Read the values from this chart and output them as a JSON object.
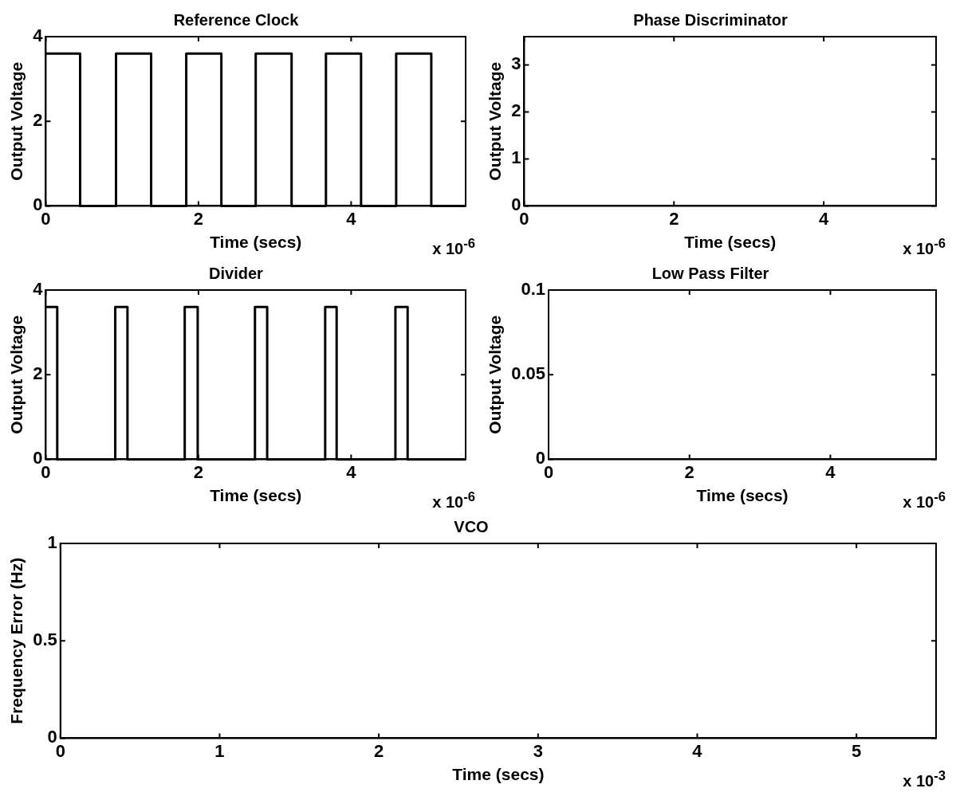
{
  "chart_data": [
    {
      "type": "step",
      "title": "Reference Clock",
      "xlabel": "Time (secs)",
      "ylabel": "Output Voltage",
      "annotations": [
        "x 10$^{-6}$"
      ],
      "color": "#000000",
      "grid": false,
      "legend": false,
      "marker": "none",
      "x": [
        0,
        0.45,
        0.92,
        1.38,
        1.84,
        2.3,
        2.75,
        3.22,
        3.67,
        4.13,
        4.59,
        5.05,
        5.5
      ],
      "values": [
        3.6,
        0,
        3.6,
        0,
        3.6,
        0,
        3.6,
        0,
        3.6,
        0,
        3.6,
        0,
        0
      ],
      "xlim": [
        0,
        5.5
      ],
      "xticks": [
        0,
        2,
        4
      ],
      "ylim": [
        0,
        4
      ],
      "yticks": [
        0,
        2,
        4
      ]
    },
    {
      "type": "line",
      "title": "Phase Discriminator",
      "xlabel": "Time (secs)",
      "ylabel": "Output Voltage",
      "annotations": [
        "x 10$^{-6}$"
      ],
      "color": "#000000",
      "grid": false,
      "legend": false,
      "marker": "none",
      "xlim": [
        0,
        5.5
      ],
      "xticks": [
        0,
        2,
        4
      ],
      "ylim": [
        0,
        3.6
      ],
      "yticks": [
        0,
        1,
        2,
        3
      ]
    },
    {
      "type": "step",
      "title": "Divider",
      "xlabel": "Time (secs)",
      "ylabel": "Output Voltage",
      "annotations": [
        "x 10$^{-6}$"
      ],
      "color": "#000000",
      "grid": false,
      "legend": false,
      "marker": "none",
      "x": [
        0,
        0.15,
        0.91,
        1.07,
        1.82,
        1.99,
        2.74,
        2.9,
        3.66,
        3.81,
        4.58,
        4.74,
        5.5
      ],
      "values": [
        3.6,
        0,
        3.6,
        0,
        3.6,
        0,
        3.6,
        0,
        3.6,
        0,
        3.6,
        0,
        0
      ],
      "xlim": [
        0,
        5.5
      ],
      "xticks": [
        0,
        2,
        4
      ],
      "ylim": [
        0,
        4
      ],
      "yticks": [
        0,
        2,
        4
      ]
    },
    {
      "type": "line",
      "title": "Low Pass Filter",
      "xlabel": "Time (secs)",
      "ylabel": "Output Voltage",
      "annotations": [
        "x 10$^{-6}$"
      ],
      "color": "#000000",
      "grid": false,
      "legend": false,
      "marker": "none",
      "xlim": [
        0,
        5.5
      ],
      "xticks": [
        0,
        2,
        4
      ],
      "ylim": [
        0,
        0.1
      ],
      "yticks": [
        0,
        0.05,
        0.1
      ]
    },
    {
      "type": "line",
      "title": "VCO",
      "xlabel": "Time (secs)",
      "ylabel": "Frequency Error (Hz)",
      "annotations": [
        "x 10$^{-3}$"
      ],
      "color": "#000000",
      "grid": false,
      "legend": false,
      "marker": "none",
      "xlim": [
        0,
        5.5
      ],
      "xticks": [
        0,
        1,
        2,
        3,
        4,
        5
      ],
      "ylim": [
        0,
        1
      ],
      "yticks": [
        0,
        0.5,
        1
      ]
    }
  ]
}
